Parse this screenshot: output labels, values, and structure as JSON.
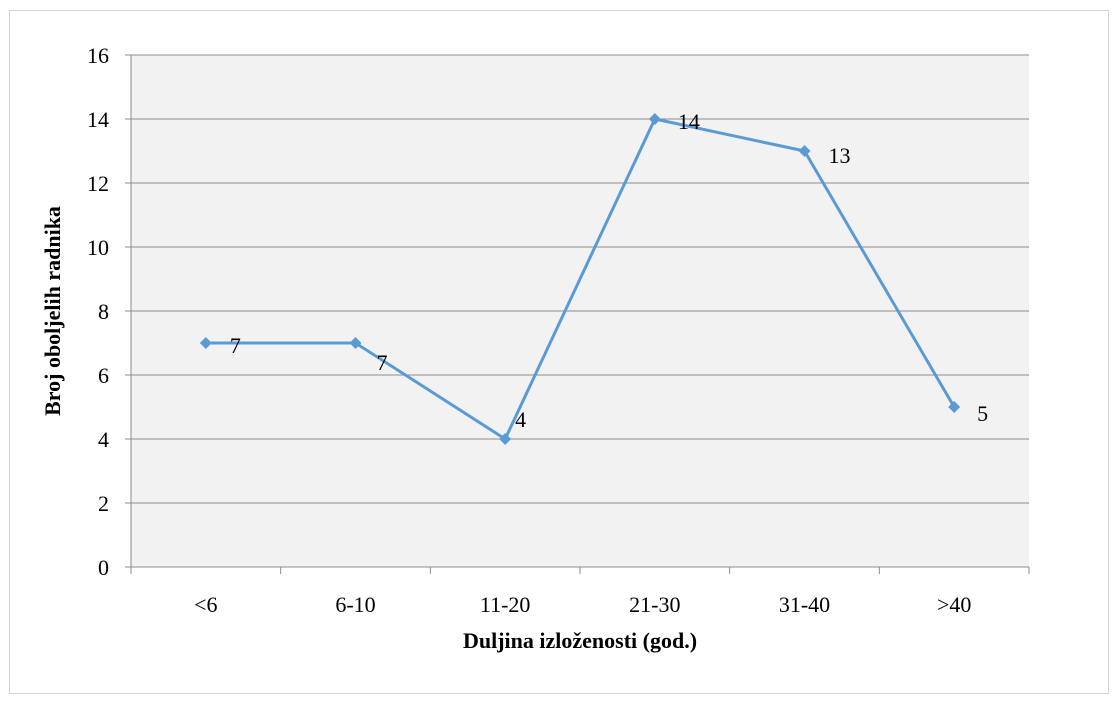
{
  "chart_data": {
    "type": "line",
    "categories": [
      "<6",
      "6-10",
      "11-20",
      "21-30",
      "31-40",
      ">40"
    ],
    "series": [
      {
        "values": [
          7,
          7,
          4,
          14,
          13,
          5
        ]
      }
    ],
    "data_labels": [
      "7",
      "7",
      "4",
      "14",
      "13",
      "5"
    ],
    "xlabel": "Duljina izloženosti (god.)",
    "ylabel": "Broj oboljelih radnika",
    "ylim": [
      0,
      16
    ],
    "yticks": [
      0,
      2,
      4,
      6,
      8,
      10,
      12,
      14,
      16
    ],
    "grid": true,
    "legend": "none",
    "colors": {
      "line": "#5b9bd5",
      "plot_background": "#f2f2f2",
      "gridline": "#8c8c8c",
      "axis": "#8c8c8c"
    }
  }
}
